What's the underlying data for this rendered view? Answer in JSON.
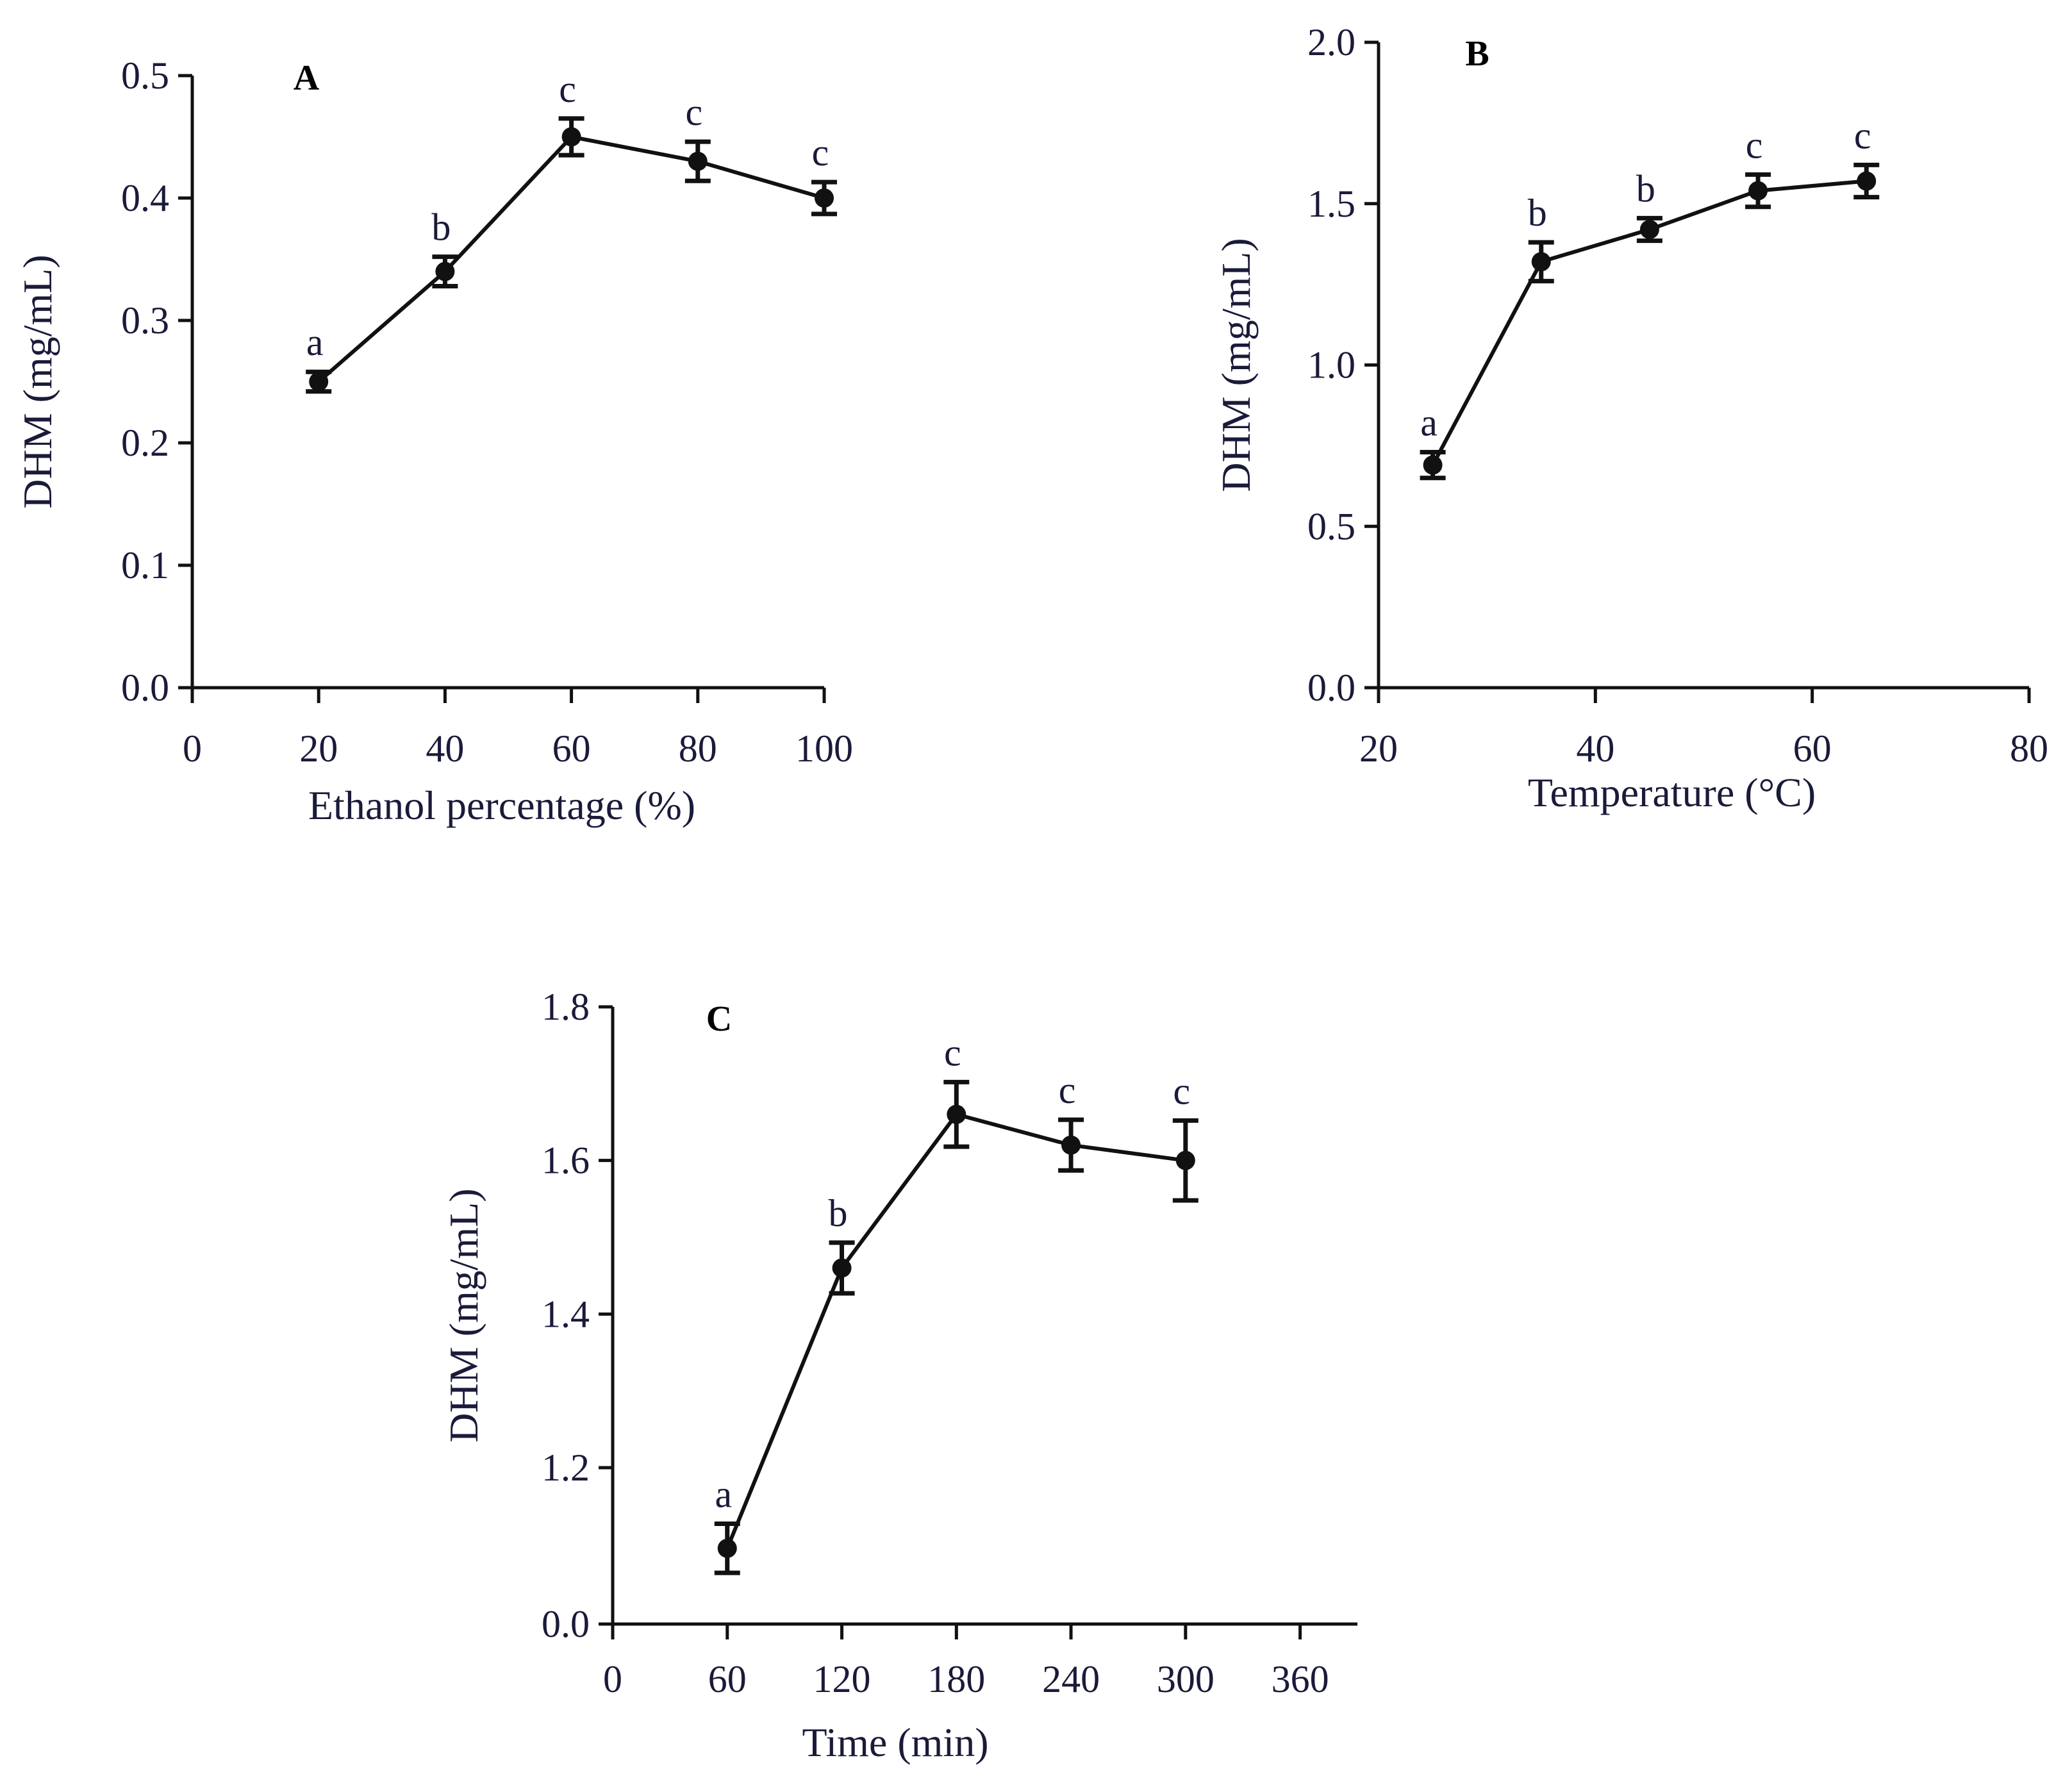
{
  "colors": {
    "line": "#111111",
    "axis": "#111111",
    "text": "#1a1a3a",
    "background": "#ffffff"
  },
  "chart_data": [
    {
      "type": "line",
      "panel_label": "A",
      "xlabel": "Ethanol percentage (%)",
      "ylabel": "DHM (mg/mL)",
      "xlim": [
        0,
        100
      ],
      "ylim": [
        0.0,
        0.5
      ],
      "xticks": [
        0,
        20,
        40,
        60,
        80,
        100
      ],
      "xtick_labels": [
        "0",
        "20",
        "40",
        "60",
        "80",
        "100"
      ],
      "yticks": [
        0.0,
        0.1,
        0.2,
        0.3,
        0.4,
        0.5
      ],
      "ytick_labels": [
        "0.0",
        "0.1",
        "0.2",
        "0.3",
        "0.4",
        "0.5"
      ],
      "grid": false,
      "series": [
        {
          "x": [
            20,
            40,
            60,
            80,
            100
          ],
          "y": [
            0.25,
            0.34,
            0.45,
            0.43,
            0.4
          ],
          "error": [
            0.008,
            0.012,
            0.015,
            0.016,
            0.013
          ],
          "labels": [
            "a",
            "b",
            "c",
            "c",
            "c"
          ]
        }
      ]
    },
    {
      "type": "line",
      "panel_label": "B",
      "xlabel": "Temperature (°C)",
      "ylabel": "DHM (mg/mL)",
      "xlim": [
        20,
        80
      ],
      "ylim": [
        0.0,
        2.0
      ],
      "xticks": [
        20,
        40,
        60,
        80
      ],
      "xtick_labels": [
        "20",
        "40",
        "60",
        "80"
      ],
      "yticks": [
        0.0,
        0.5,
        1.0,
        1.5,
        2.0
      ],
      "ytick_labels": [
        "0.0",
        "0.5",
        "1.0",
        "1.5",
        "2.0"
      ],
      "grid": false,
      "series": [
        {
          "x": [
            25,
            35,
            45,
            55,
            65
          ],
          "y": [
            0.69,
            1.32,
            1.42,
            1.54,
            1.57
          ],
          "error": [
            0.04,
            0.06,
            0.035,
            0.05,
            0.05
          ],
          "labels": [
            "a",
            "b",
            "b",
            "c",
            "c"
          ]
        }
      ]
    },
    {
      "type": "line",
      "panel_label": "C",
      "xlabel": "Time (min)",
      "ylabel": "DHM (mg/mL)",
      "xlim": [
        0,
        390
      ],
      "xticks": [
        0,
        60,
        120,
        180,
        240,
        300,
        360
      ],
      "xtick_labels": [
        "0",
        "60",
        "120",
        "180",
        "240",
        "300",
        "360"
      ],
      "yticks": [
        0.0,
        1.2,
        1.4,
        1.6,
        1.8
      ],
      "ytick_labels": [
        "0.0",
        "1.2",
        "1.4",
        "1.6",
        "1.8"
      ],
      "y_axis_break": true,
      "grid": false,
      "series": [
        {
          "x": [
            60,
            120,
            180,
            240,
            300
          ],
          "y": [
            1.095,
            1.46,
            1.66,
            1.62,
            1.6
          ],
          "error": [
            0.032,
            0.033,
            0.042,
            0.033,
            0.052
          ],
          "labels": [
            "a",
            "b",
            "c",
            "c",
            "c"
          ]
        }
      ]
    }
  ]
}
